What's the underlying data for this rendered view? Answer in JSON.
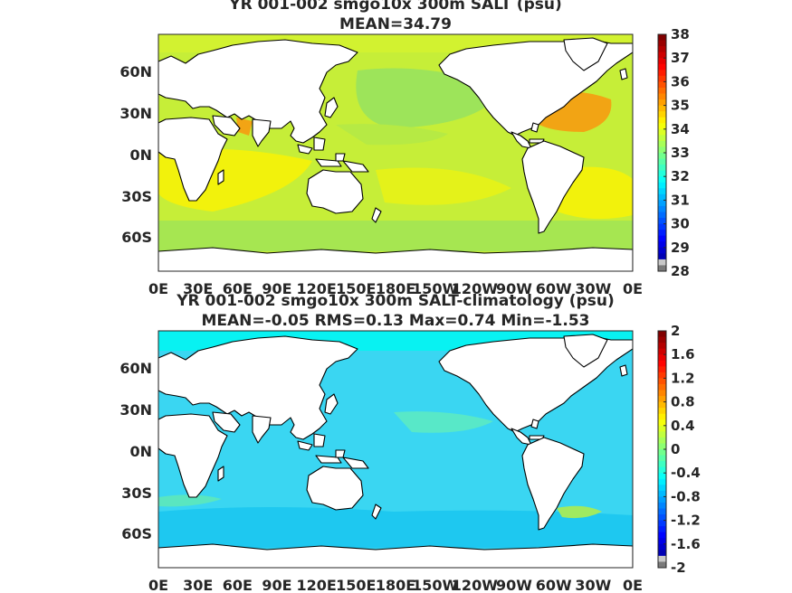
{
  "chart_data": [
    {
      "type": "heatmap",
      "title": "YR 001-002 smgo10x 300m SALT (psu)",
      "subtitle": "MEAN=34.79",
      "xticks": [
        "0E",
        "30E",
        "60E",
        "90E",
        "120E",
        "150E",
        "180E",
        "150W",
        "120W",
        "90W",
        "60W",
        "30W",
        "0E"
      ],
      "yticks": [
        "60N",
        "30N",
        "0N",
        "30S",
        "60S"
      ],
      "colorbar": {
        "ticks": [
          "38",
          "37",
          "36",
          "35",
          "34",
          "33",
          "32",
          "31",
          "30",
          "29",
          "28"
        ],
        "range": [
          28,
          38
        ]
      },
      "field_summary": {
        "mean": 34.79,
        "max_region": "subtropical North Atlantic ~36.5",
        "min_region": "North Pacific ~33.6"
      }
    },
    {
      "type": "heatmap",
      "title": "YR 001-002 smgo10x 300m SALT-climatology (psu)",
      "subtitle": "MEAN=-0.05   RMS=0.13   Max=0.74   Min=-1.53",
      "xticks": [
        "0E",
        "30E",
        "60E",
        "90E",
        "120E",
        "150E",
        "180E",
        "150W",
        "120W",
        "90W",
        "60W",
        "30W",
        "0E"
      ],
      "yticks": [
        "60N",
        "30N",
        "0N",
        "30S",
        "60S"
      ],
      "colorbar": {
        "ticks": [
          "2",
          "1.6",
          "1.2",
          "0.8",
          "0.4",
          "0",
          "-0.4",
          "-0.8",
          "-1.2",
          "-1.6",
          "-2"
        ],
        "range": [
          -2,
          2
        ]
      },
      "stats": {
        "mean": -0.05,
        "rms": 0.13,
        "max": 0.74,
        "min": -1.53
      }
    }
  ]
}
